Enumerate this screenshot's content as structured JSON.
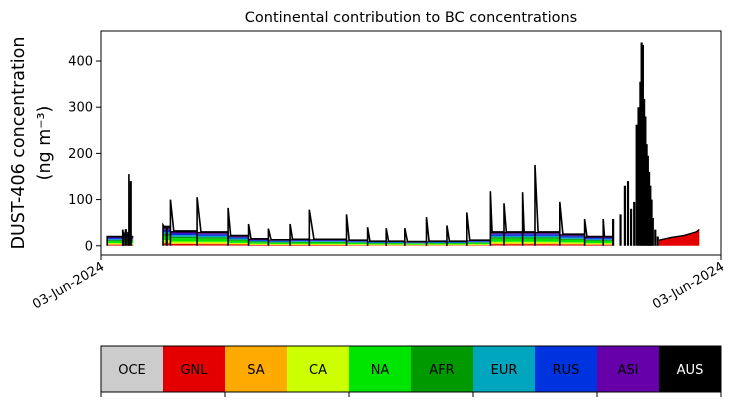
{
  "chart_data": {
    "type": "area",
    "stacked": true,
    "title": "Continental contribution to BC concentrations",
    "ylabel_line1": "DUST-406 concentration",
    "ylabel_line2": "(ng m⁻³)",
    "ylim": [
      -20,
      465
    ],
    "yticks": [
      0,
      100,
      200,
      300,
      400
    ],
    "x_tick_labels": [
      "03-Jun-2024",
      "03-Jun-2024"
    ],
    "grid": false,
    "legend_placement": "below",
    "series": [
      {
        "name": "OCE",
        "color": "#cccccc",
        "text_color": "#000000"
      },
      {
        "name": "GNL",
        "color": "#e50000",
        "text_color": "#000000"
      },
      {
        "name": "SA",
        "color": "#ffaa00",
        "text_color": "#000000"
      },
      {
        "name": "CA",
        "color": "#ccff00",
        "text_color": "#000000"
      },
      {
        "name": "NA",
        "color": "#00e500",
        "text_color": "#000000"
      },
      {
        "name": "AFR",
        "color": "#009900",
        "text_color": "#000000"
      },
      {
        "name": "EUR",
        "color": "#00a5be",
        "text_color": "#000000"
      },
      {
        "name": "RUS",
        "color": "#0033e0",
        "text_color": "#000000"
      },
      {
        "name": "ASI",
        "color": "#6600a8",
        "text_color": "#000000"
      },
      {
        "name": "AUS",
        "color": "#000000",
        "text_color": "#ffffff"
      }
    ],
    "x_range": [
      0,
      1000
    ],
    "episodes": [
      {
        "x": 10,
        "end": 35,
        "peak": 20,
        "base": 20
      },
      {
        "x": 35,
        "end": 45,
        "peak": 35,
        "base": 25
      },
      {
        "x": 45,
        "end": 52,
        "peak": 155,
        "base": 20
      },
      {
        "x": 100,
        "end": 112,
        "peak": 45,
        "base": 42
      },
      {
        "x": 112,
        "end": 155,
        "peak": 100,
        "base": 32
      },
      {
        "x": 155,
        "end": 205,
        "peak": 105,
        "base": 30
      },
      {
        "x": 205,
        "end": 238,
        "peak": 82,
        "base": 22
      },
      {
        "x": 238,
        "end": 270,
        "peak": 47,
        "base": 15
      },
      {
        "x": 270,
        "end": 305,
        "peak": 37,
        "base": 13
      },
      {
        "x": 305,
        "end": 336,
        "peak": 47,
        "base": 14
      },
      {
        "x": 336,
        "end": 396,
        "peak": 78,
        "base": 14
      },
      {
        "x": 396,
        "end": 430,
        "peak": 68,
        "base": 12
      },
      {
        "x": 430,
        "end": 460,
        "peak": 40,
        "base": 10
      },
      {
        "x": 460,
        "end": 490,
        "peak": 38,
        "base": 10
      },
      {
        "x": 490,
        "end": 525,
        "peak": 38,
        "base": 9
      },
      {
        "x": 525,
        "end": 558,
        "peak": 62,
        "base": 10
      },
      {
        "x": 558,
        "end": 590,
        "peak": 44,
        "base": 10
      },
      {
        "x": 590,
        "end": 628,
        "peak": 72,
        "base": 12
      },
      {
        "x": 628,
        "end": 650,
        "peak": 118,
        "base": 30
      },
      {
        "x": 650,
        "end": 680,
        "peak": 92,
        "base": 30
      },
      {
        "x": 680,
        "end": 700,
        "peak": 116,
        "base": 30
      },
      {
        "x": 700,
        "end": 740,
        "peak": 175,
        "base": 30
      },
      {
        "x": 740,
        "end": 780,
        "peak": 95,
        "base": 25
      },
      {
        "x": 780,
        "end": 810,
        "peak": 58,
        "base": 20
      },
      {
        "x": 810,
        "end": 826,
        "peak": 58,
        "base": 20
      }
    ],
    "spikes": [
      {
        "x": 36,
        "value": 30
      },
      {
        "x": 40,
        "value": 36
      },
      {
        "x": 44,
        "value": 30
      },
      {
        "x": 48,
        "value": 140
      },
      {
        "x": 106,
        "value": 42
      },
      {
        "x": 826,
        "value": 58
      },
      {
        "x": 838,
        "value": 68
      },
      {
        "x": 845,
        "value": 130
      },
      {
        "x": 850,
        "value": 140
      },
      {
        "x": 855,
        "value": 80
      },
      {
        "x": 860,
        "value": 95
      },
      {
        "x": 864,
        "value": 262
      },
      {
        "x": 867,
        "value": 300
      },
      {
        "x": 870,
        "value": 355
      },
      {
        "x": 872,
        "value": 440
      },
      {
        "x": 874,
        "value": 435
      },
      {
        "x": 876,
        "value": 318
      },
      {
        "x": 878,
        "value": 280
      },
      {
        "x": 880,
        "value": 220
      },
      {
        "x": 882,
        "value": 195
      },
      {
        "x": 884,
        "value": 160
      },
      {
        "x": 886,
        "value": 130
      },
      {
        "x": 888,
        "value": 100
      },
      {
        "x": 890,
        "value": 60
      },
      {
        "x": 894,
        "value": 35
      },
      {
        "x": 898,
        "value": 20
      }
    ],
    "tail": [
      {
        "x": 900,
        "value": 12
      },
      {
        "x": 920,
        "value": 18
      },
      {
        "x": 940,
        "value": 22
      },
      {
        "x": 960,
        "value": 30
      },
      {
        "x": 965,
        "value": 35
      }
    ]
  }
}
